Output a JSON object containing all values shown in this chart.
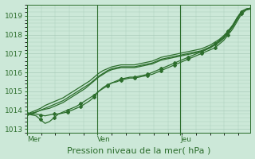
{
  "background_color": "#cce8d8",
  "grid_color": "#aaccbb",
  "line_color": "#2d6e2d",
  "marker_color": "#2d6e2d",
  "ylim": [
    1012.8,
    1019.6
  ],
  "yticks": [
    1013,
    1014,
    1015,
    1016,
    1017,
    1018,
    1019
  ],
  "xlabel": "Pression niveau de la mer( hPa )",
  "xlabel_fontsize": 8,
  "tick_fontsize": 6.5,
  "day_labels": [
    "Mer",
    "Ven",
    "Jeu"
  ],
  "day_positions": [
    0.0,
    0.315,
    0.685
  ],
  "xlim": [
    0,
    1
  ],
  "series": [
    [
      1013.8,
      1013.8,
      1013.8,
      1013.75,
      1013.7,
      1013.75,
      1013.8,
      1013.8,
      1013.85,
      1013.9,
      1014.0,
      1014.1,
      1014.2,
      1014.35,
      1014.5,
      1014.7,
      1015.0,
      1015.2,
      1015.35,
      1015.45,
      1015.5,
      1015.6,
      1015.65,
      1015.7,
      1015.7,
      1015.75,
      1015.8,
      1015.85,
      1015.9,
      1016.0,
      1016.1,
      1016.2,
      1016.3,
      1016.4,
      1016.5,
      1016.6,
      1016.7,
      1016.8,
      1016.9,
      1017.0,
      1017.1,
      1017.2,
      1017.3,
      1017.5,
      1017.7,
      1018.0,
      1018.3,
      1018.7,
      1019.1,
      1019.3,
      1019.35
    ],
    [
      1013.8,
      1013.75,
      1013.7,
      1013.5,
      1013.3,
      1013.4,
      1013.6,
      1013.8,
      1013.9,
      1014.0,
      1014.1,
      1014.2,
      1014.35,
      1014.5,
      1014.65,
      1014.8,
      1015.0,
      1015.15,
      1015.3,
      1015.45,
      1015.55,
      1015.65,
      1015.7,
      1015.75,
      1015.75,
      1015.8,
      1015.85,
      1015.9,
      1016.0,
      1016.1,
      1016.2,
      1016.3,
      1016.4,
      1016.5,
      1016.6,
      1016.7,
      1016.8,
      1016.9,
      1017.0,
      1017.1,
      1017.2,
      1017.35,
      1017.5,
      1017.7,
      1017.9,
      1018.2,
      1018.5,
      1018.9,
      1019.2,
      1019.35,
      1019.4
    ],
    [
      1013.8,
      1013.8,
      1013.9,
      1014.0,
      1014.05,
      1014.1,
      1014.2,
      1014.3,
      1014.4,
      1014.55,
      1014.7,
      1014.85,
      1015.0,
      1015.15,
      1015.35,
      1015.55,
      1015.75,
      1015.9,
      1016.05,
      1016.15,
      1016.2,
      1016.25,
      1016.25,
      1016.25,
      1016.25,
      1016.3,
      1016.35,
      1016.4,
      1016.45,
      1016.55,
      1016.65,
      1016.7,
      1016.75,
      1016.8,
      1016.85,
      1016.9,
      1016.95,
      1017.0,
      1017.05,
      1017.1,
      1017.2,
      1017.3,
      1017.45,
      1017.6,
      1017.8,
      1018.1,
      1018.4,
      1018.8,
      1019.2,
      1019.35,
      1019.4
    ],
    [
      1013.8,
      1013.85,
      1013.9,
      1014.0,
      1014.1,
      1014.2,
      1014.3,
      1014.4,
      1014.5,
      1014.65,
      1014.8,
      1014.95,
      1015.1,
      1015.25,
      1015.4,
      1015.6,
      1015.8,
      1015.95,
      1016.1,
      1016.2,
      1016.25,
      1016.3,
      1016.3,
      1016.3,
      1016.3,
      1016.35,
      1016.4,
      1016.45,
      1016.5,
      1016.6,
      1016.7,
      1016.75,
      1016.8,
      1016.85,
      1016.9,
      1016.95,
      1017.0,
      1017.05,
      1017.1,
      1017.15,
      1017.25,
      1017.35,
      1017.5,
      1017.65,
      1017.85,
      1018.15,
      1018.45,
      1018.85,
      1019.2,
      1019.35,
      1019.4
    ],
    [
      1013.8,
      1013.9,
      1014.0,
      1014.1,
      1014.25,
      1014.35,
      1014.45,
      1014.55,
      1014.65,
      1014.8,
      1014.95,
      1015.1,
      1015.25,
      1015.4,
      1015.55,
      1015.75,
      1015.95,
      1016.1,
      1016.2,
      1016.3,
      1016.35,
      1016.4,
      1016.4,
      1016.4,
      1016.4,
      1016.45,
      1016.5,
      1016.55,
      1016.6,
      1016.7,
      1016.8,
      1016.85,
      1016.9,
      1016.95,
      1017.0,
      1017.05,
      1017.1,
      1017.15,
      1017.2,
      1017.25,
      1017.35,
      1017.45,
      1017.6,
      1017.75,
      1017.95,
      1018.2,
      1018.5,
      1018.9,
      1019.25,
      1019.35,
      1019.4
    ]
  ],
  "series_with_markers": [
    0,
    1
  ],
  "marker_every": [
    2,
    2,
    999,
    999,
    999
  ]
}
